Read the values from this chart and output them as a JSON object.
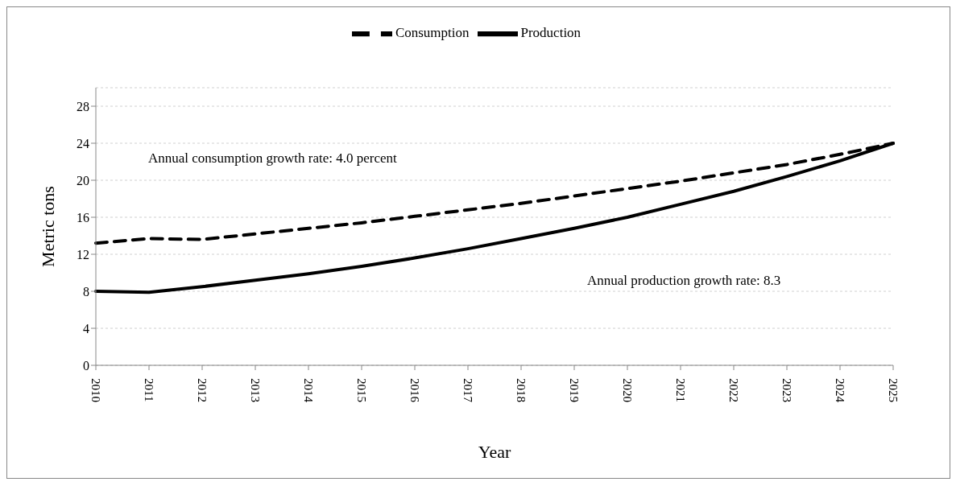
{
  "chart_data": {
    "type": "line",
    "xlabel": "Year",
    "ylabel": "Metric tons",
    "categories": [
      "2010",
      "2011",
      "2012",
      "2013",
      "2014",
      "2015",
      "2016",
      "2017",
      "2018",
      "2019",
      "2020",
      "2021",
      "2022",
      "2023",
      "2024",
      "2025"
    ],
    "series": [
      {
        "name": "Production",
        "color": "#000000",
        "line_style": "solid",
        "values": [
          8.0,
          7.9,
          8.5,
          9.2,
          9.9,
          10.7,
          11.6,
          12.6,
          13.7,
          14.8,
          16.0,
          17.4,
          18.8,
          20.4,
          22.1,
          24.0
        ]
      },
      {
        "name": "Consumption",
        "color": "#000000",
        "line_style": "dashed",
        "values": [
          13.2,
          13.7,
          13.6,
          14.2,
          14.8,
          15.4,
          16.1,
          16.8,
          17.5,
          18.3,
          19.1,
          19.9,
          20.8,
          21.7,
          22.8,
          24.0
        ]
      }
    ],
    "ylim": [
      0,
      30
    ],
    "yticks": [
      0,
      4,
      8,
      12,
      16,
      20,
      24,
      28
    ],
    "grid": "y",
    "legend": "top",
    "marker": "none",
    "annotations": [
      "Annual consumption growth rate: 4.0 percent",
      "Annual production growth rate: 8.3"
    ]
  }
}
